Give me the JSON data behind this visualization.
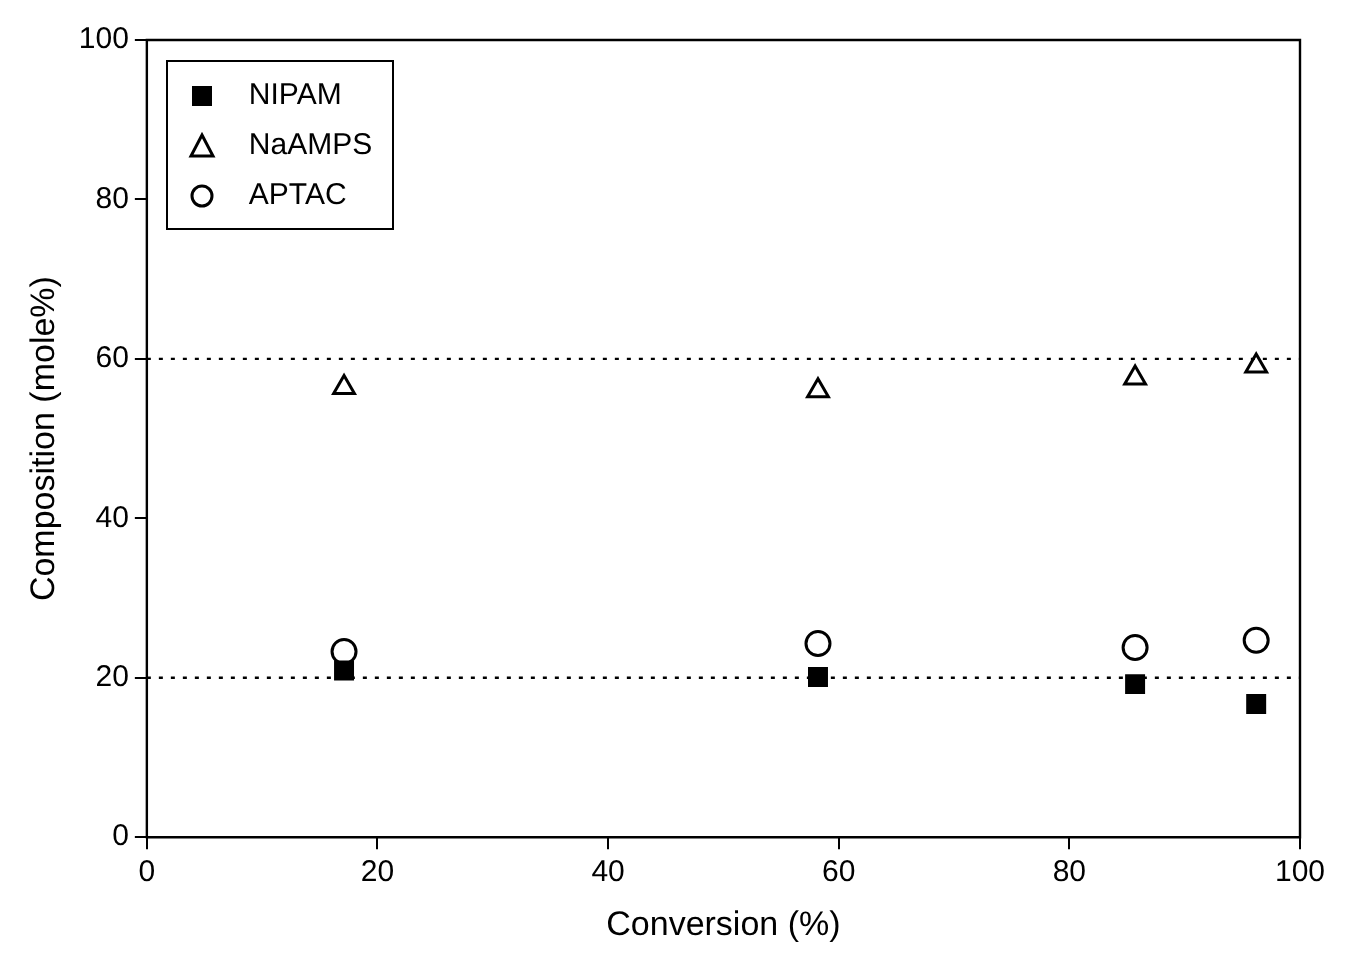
{
  "chart_data": {
    "type": "scatter",
    "xlabel": "Conversion (%)",
    "ylabel": "Composition (mole%)",
    "xlim": [
      0,
      100
    ],
    "xticks": [
      0,
      20,
      40,
      60,
      80,
      100
    ],
    "ylim": [
      0,
      100
    ],
    "yticks": [
      0,
      20,
      40,
      60,
      80,
      100
    ],
    "x": [
      17.1,
      58.2,
      85.7,
      96.2
    ],
    "series": [
      {
        "name": "NIPAM",
        "color": "#000000",
        "marker": "square",
        "values": [
          20.9,
          20.1,
          19.2,
          16.7
        ]
      },
      {
        "name": "NaAMPS",
        "color": "#000000",
        "marker": "triangle",
        "values": [
          56.4,
          56.0,
          57.6,
          59.1
        ]
      },
      {
        "name": "APTAC",
        "color": "#000000",
        "marker": "circle",
        "values": [
          23.3,
          24.3,
          23.8,
          24.7
        ]
      }
    ],
    "ref_lines": [
      {
        "axis": "y",
        "value": 60,
        "line_style": "dotted"
      },
      {
        "axis": "y",
        "value": 20,
        "line_style": "dotted"
      }
    ],
    "legend": "top left",
    "grid": false
  }
}
